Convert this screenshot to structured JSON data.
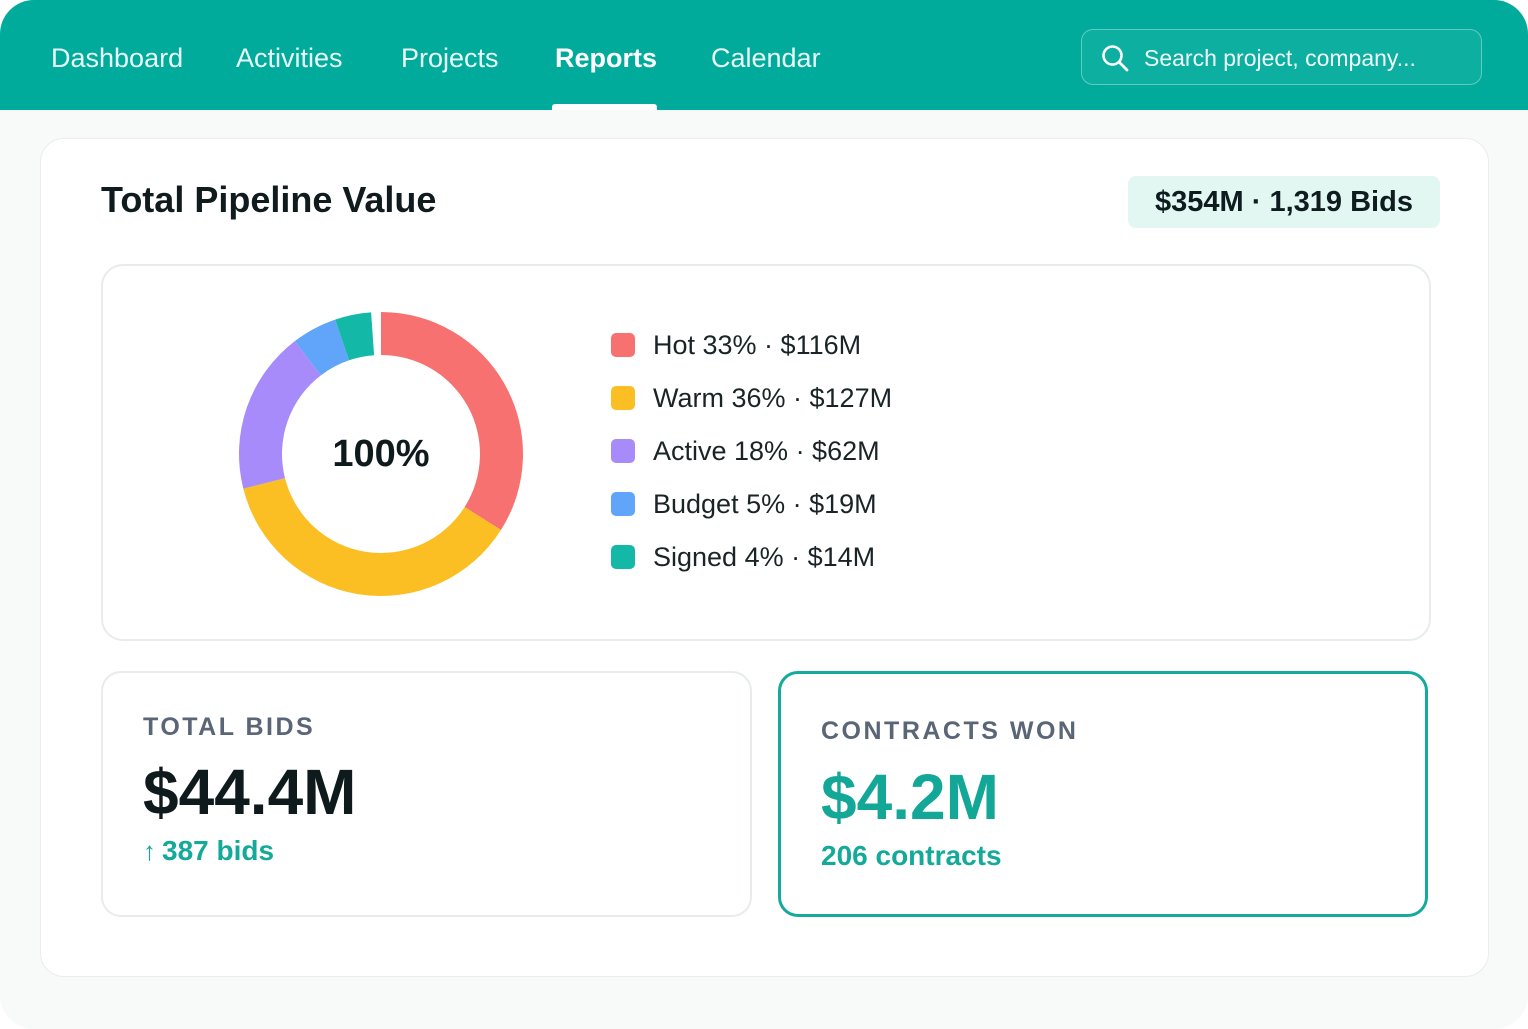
{
  "nav": {
    "items": [
      {
        "label": "Dashboard",
        "active": false
      },
      {
        "label": "Activities",
        "active": false
      },
      {
        "label": "Projects",
        "active": false
      },
      {
        "label": "Reports",
        "active": true
      },
      {
        "label": "Calendar",
        "active": false
      }
    ]
  },
  "search": {
    "placeholder": "Search project, company...",
    "icon": "search-icon"
  },
  "pipeline": {
    "title": "Total Pipeline Value",
    "summary": "$354M · 1,319 Bids",
    "center_label": "100%"
  },
  "chart_data": {
    "type": "pie",
    "donut": true,
    "categories": [
      "Hot",
      "Warm",
      "Active",
      "Budget",
      "Signed"
    ],
    "values": [
      33,
      36,
      18,
      5,
      4
    ],
    "amounts": [
      "$116M",
      "$127M",
      "$62M",
      "$19M",
      "$14M"
    ],
    "colors": [
      "#f87171",
      "#fbbf24",
      "#a78bfa",
      "#60a5fa",
      "#14b8a6"
    ],
    "legend_labels": [
      "Hot 33% · $116M",
      "Warm 36% · $127M",
      "Active 18% · $62M",
      "Budget 5% · $19M",
      "Signed 4% · $14M"
    ],
    "legend_position": "right",
    "center_text": "100%"
  },
  "stats": {
    "total_bids": {
      "label": "TOTAL BIDS",
      "value": "$44.4M",
      "sub": "387 bids",
      "trend_icon": "arrow-up-icon"
    },
    "contracts_won": {
      "label": "CONTRACTS WON",
      "value": "$4.2M",
      "sub": "206 contracts"
    }
  },
  "colors": {
    "brand": "#00ab9c",
    "accent_text": "#14a999",
    "badge_bg": "#e2f6f2"
  }
}
